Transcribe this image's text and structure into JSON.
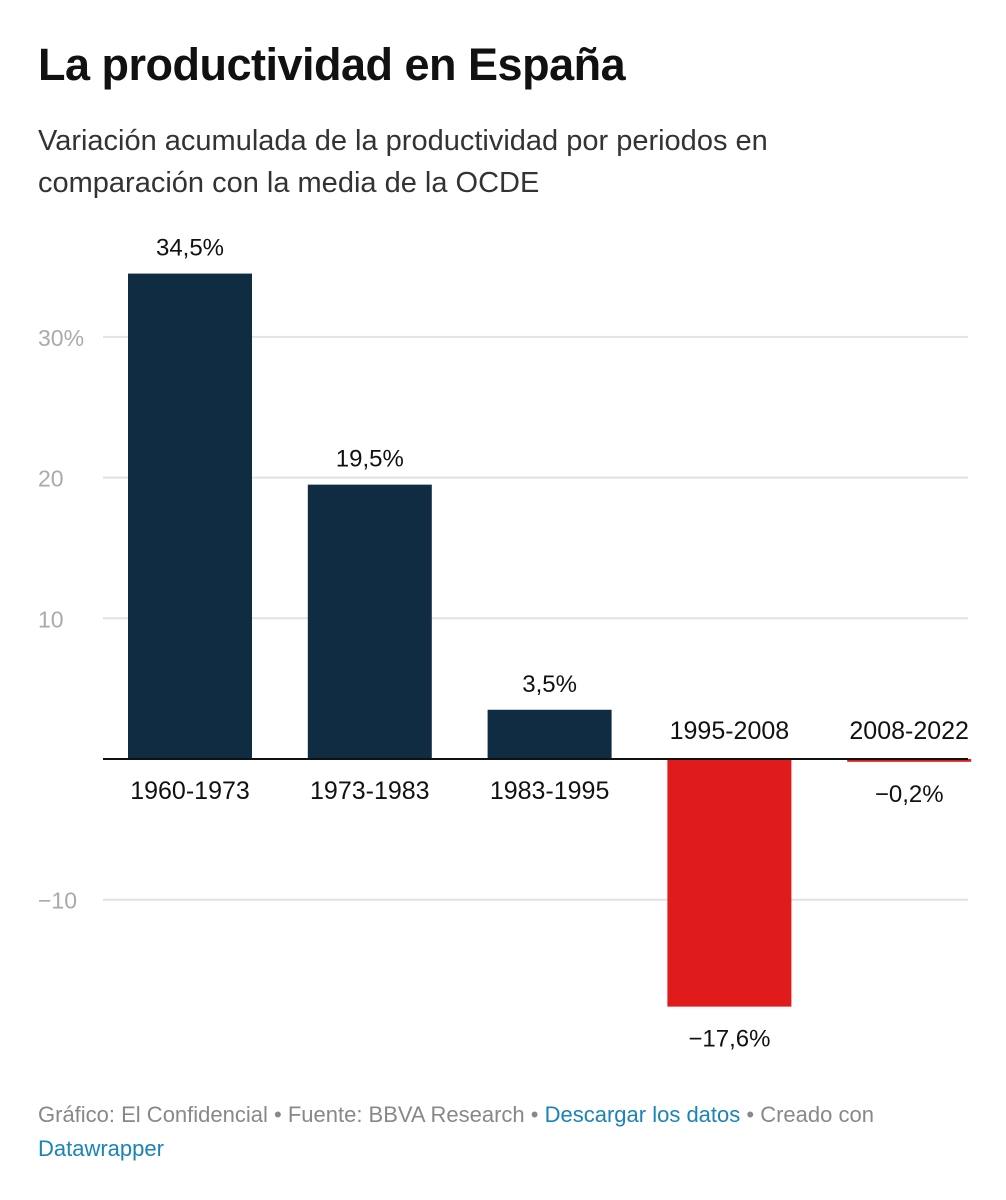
{
  "header": {
    "title": "La productividad en España",
    "subtitle": "Variación acumulada de la productividad por periodos en comparación con la media de la OCDE"
  },
  "chart_data": {
    "type": "bar",
    "title": "La productividad en España",
    "subtitle": "Variación acumulada de la productividad por periodos en comparación con la media de la OCDE",
    "xlabel": "",
    "ylabel": "",
    "categories": [
      "1960-1973",
      "1973-1983",
      "1983-1995",
      "1995-2008",
      "2008-2022"
    ],
    "values": [
      34.5,
      19.5,
      3.5,
      -17.6,
      -0.2
    ],
    "value_labels": [
      "34,5%",
      "19,5%",
      "3,5%",
      "−17,6%",
      "−0,2%"
    ],
    "ylim": [
      -20,
      37
    ],
    "yticks": [
      -10,
      10,
      20,
      30
    ],
    "ytick_labels": [
      "−10",
      "10",
      "20",
      "30%"
    ],
    "grid": true,
    "legend": "none",
    "colors": {
      "positive": "#0f2c42",
      "negative": "#e01b1b"
    }
  },
  "footer": {
    "graphic": "Gráfico: El Confidencial",
    "source": "Fuente: BBVA Research",
    "separator": " • ",
    "download_label": "Descargar los datos",
    "created": "Creado con",
    "datawrapper_label": "Datawrapper"
  }
}
